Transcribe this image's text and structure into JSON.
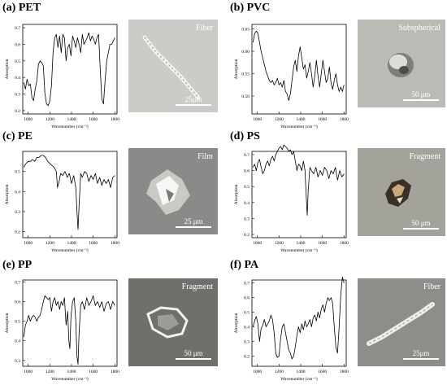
{
  "panels": [
    {
      "id": "a",
      "title": "(a) PET",
      "morphology": "Fiber",
      "scale": "25μm",
      "bg": "#c9ccc7"
    },
    {
      "id": "b",
      "title": "(b) PVC",
      "morphology": "Subspherical",
      "scale": "50 μm",
      "bg": "#b8bcb4"
    },
    {
      "id": "c",
      "title": "(c) PE",
      "morphology": "Film",
      "scale": "25 μm",
      "bg": "#8a8a88"
    },
    {
      "id": "d",
      "title": "(d) PS",
      "morphology": "Fragment",
      "scale": "50 μm",
      "bg": "#a3a39c"
    },
    {
      "id": "e",
      "title": "(e) PP",
      "morphology": "Fragment",
      "scale": "50 μm",
      "bg": "#6f706c"
    },
    {
      "id": "f",
      "title": "(f) PA",
      "morphology": "Fiber",
      "scale": "25μm",
      "bg": "#8c8e8a"
    }
  ],
  "chart_data": [
    {
      "type": "line",
      "panel": "a",
      "xlabel": "Wavenumber (cm⁻¹)",
      "ylabel": "Absorption",
      "xlim": [
        950,
        1820
      ],
      "ylim": [
        0.18,
        0.72
      ],
      "xticks": [
        "1000",
        "1200",
        "1400",
        "1600",
        "1800"
      ],
      "yticks": [
        "0.2",
        "0.3",
        "0.4",
        "0.5",
        "0.6",
        "0.7"
      ],
      "x": [
        960,
        975,
        990,
        1005,
        1020,
        1035,
        1050,
        1065,
        1080,
        1095,
        1110,
        1125,
        1140,
        1155,
        1170,
        1185,
        1200,
        1215,
        1230,
        1245,
        1260,
        1275,
        1290,
        1305,
        1320,
        1335,
        1350,
        1365,
        1380,
        1395,
        1410,
        1425,
        1440,
        1455,
        1470,
        1485,
        1500,
        1515,
        1530,
        1545,
        1560,
        1575,
        1590,
        1605,
        1620,
        1635,
        1650,
        1665,
        1680,
        1695,
        1710,
        1725,
        1740,
        1755,
        1770,
        1785,
        1800
      ],
      "y": [
        0.37,
        0.33,
        0.39,
        0.35,
        0.36,
        0.28,
        0.26,
        0.33,
        0.38,
        0.48,
        0.5,
        0.49,
        0.47,
        0.3,
        0.24,
        0.23,
        0.26,
        0.35,
        0.55,
        0.64,
        0.66,
        0.58,
        0.65,
        0.55,
        0.66,
        0.64,
        0.5,
        0.58,
        0.6,
        0.53,
        0.65,
        0.62,
        0.58,
        0.64,
        0.6,
        0.55,
        0.66,
        0.6,
        0.62,
        0.64,
        0.67,
        0.62,
        0.65,
        0.63,
        0.6,
        0.64,
        0.66,
        0.45,
        0.27,
        0.24,
        0.38,
        0.5,
        0.55,
        0.6,
        0.6,
        0.62,
        0.64
      ]
    },
    {
      "type": "line",
      "panel": "b",
      "xlabel": "Wavenumber (cm⁻¹)",
      "ylabel": "Absorption",
      "xlim": [
        950,
        1820
      ],
      "ylim": [
        0.46,
        0.66
      ],
      "xticks": [
        "1000",
        "1200",
        "1400",
        "1600",
        "1800"
      ],
      "yticks": [
        "0.50",
        "0.55",
        "0.60",
        "0.65"
      ],
      "x": [
        960,
        975,
        990,
        1005,
        1020,
        1035,
        1050,
        1065,
        1080,
        1095,
        1110,
        1125,
        1140,
        1155,
        1170,
        1185,
        1200,
        1215,
        1230,
        1245,
        1260,
        1275,
        1290,
        1305,
        1320,
        1335,
        1350,
        1365,
        1380,
        1395,
        1410,
        1425,
        1440,
        1455,
        1470,
        1485,
        1500,
        1515,
        1530,
        1545,
        1560,
        1575,
        1590,
        1605,
        1620,
        1635,
        1650,
        1665,
        1680,
        1695,
        1710,
        1725,
        1740,
        1755,
        1770,
        1785,
        1800
      ],
      "y": [
        0.62,
        0.64,
        0.645,
        0.64,
        0.62,
        0.6,
        0.585,
        0.57,
        0.555,
        0.545,
        0.535,
        0.53,
        0.535,
        0.525,
        0.53,
        0.54,
        0.525,
        0.53,
        0.52,
        0.535,
        0.51,
        0.505,
        0.49,
        0.505,
        0.535,
        0.565,
        0.58,
        0.555,
        0.59,
        0.61,
        0.585,
        0.56,
        0.57,
        0.54,
        0.555,
        0.575,
        0.55,
        0.52,
        0.545,
        0.58,
        0.545,
        0.52,
        0.55,
        0.58,
        0.555,
        0.53,
        0.54,
        0.565,
        0.53,
        0.515,
        0.535,
        0.55,
        0.525,
        0.51,
        0.52,
        0.51,
        0.525
      ]
    },
    {
      "type": "line",
      "panel": "c",
      "xlabel": "Wavenumber (cm⁻¹)",
      "ylabel": "Absorption",
      "xlim": [
        950,
        1820
      ],
      "ylim": [
        0.17,
        0.6
      ],
      "xticks": [
        "1000",
        "1200",
        "1400",
        "1600",
        "1800"
      ],
      "yticks": [
        "0.2",
        "0.3",
        "0.4",
        "0.5"
      ],
      "x": [
        960,
        980,
        1000,
        1020,
        1040,
        1060,
        1080,
        1100,
        1120,
        1140,
        1160,
        1180,
        1200,
        1220,
        1240,
        1260,
        1270,
        1285,
        1300,
        1320,
        1340,
        1360,
        1380,
        1400,
        1420,
        1440,
        1450,
        1460,
        1470,
        1485,
        1500,
        1520,
        1540,
        1560,
        1580,
        1600,
        1620,
        1640,
        1660,
        1680,
        1700,
        1720,
        1740,
        1760,
        1780,
        1800
      ],
      "y": [
        0.52,
        0.54,
        0.55,
        0.55,
        0.56,
        0.55,
        0.57,
        0.57,
        0.58,
        0.58,
        0.57,
        0.55,
        0.54,
        0.53,
        0.52,
        0.5,
        0.42,
        0.45,
        0.49,
        0.48,
        0.5,
        0.47,
        0.49,
        0.44,
        0.48,
        0.42,
        0.3,
        0.21,
        0.33,
        0.49,
        0.47,
        0.5,
        0.49,
        0.45,
        0.48,
        0.46,
        0.49,
        0.44,
        0.47,
        0.43,
        0.46,
        0.44,
        0.46,
        0.42,
        0.47,
        0.48
      ]
    },
    {
      "type": "line",
      "panel": "d",
      "xlabel": "Wavenumber (cm⁻¹)",
      "ylabel": "Absorption",
      "xlim": [
        950,
        1820
      ],
      "ylim": [
        0.18,
        0.72
      ],
      "xticks": [
        "1000",
        "1200",
        "1400",
        "1600",
        "1800"
      ],
      "yticks": [
        "0.2",
        "0.3",
        "0.4",
        "0.5",
        "0.6",
        "0.7"
      ],
      "x": [
        960,
        975,
        990,
        1005,
        1020,
        1035,
        1050,
        1065,
        1080,
        1095,
        1110,
        1125,
        1140,
        1155,
        1170,
        1185,
        1200,
        1215,
        1230,
        1245,
        1260,
        1275,
        1290,
        1305,
        1320,
        1335,
        1350,
        1365,
        1380,
        1395,
        1410,
        1425,
        1440,
        1450,
        1460,
        1470,
        1485,
        1500,
        1520,
        1540,
        1560,
        1580,
        1600,
        1620,
        1640,
        1660,
        1680,
        1700,
        1720,
        1740,
        1760,
        1780,
        1800
      ],
      "y": [
        0.62,
        0.64,
        0.6,
        0.65,
        0.67,
        0.62,
        0.58,
        0.6,
        0.64,
        0.66,
        0.63,
        0.67,
        0.69,
        0.66,
        0.7,
        0.72,
        0.74,
        0.75,
        0.73,
        0.76,
        0.75,
        0.74,
        0.72,
        0.73,
        0.7,
        0.72,
        0.66,
        0.6,
        0.64,
        0.63,
        0.6,
        0.66,
        0.6,
        0.45,
        0.32,
        0.48,
        0.62,
        0.6,
        0.58,
        0.62,
        0.56,
        0.6,
        0.57,
        0.62,
        0.6,
        0.55,
        0.6,
        0.58,
        0.62,
        0.54,
        0.6,
        0.56,
        0.58
      ]
    },
    {
      "type": "line",
      "panel": "e",
      "xlabel": "Wavenumber (cm⁻¹)",
      "ylabel": "Absorption",
      "xlim": [
        950,
        1820
      ],
      "ylim": [
        0.27,
        0.71
      ],
      "xticks": [
        "1000",
        "1200",
        "1400",
        "1600",
        "1800"
      ],
      "yticks": [
        "0.3",
        "0.4",
        "0.5",
        "0.6",
        "0.7"
      ],
      "x": [
        960,
        975,
        990,
        1005,
        1020,
        1035,
        1050,
        1065,
        1080,
        1095,
        1110,
        1125,
        1140,
        1155,
        1170,
        1185,
        1200,
        1215,
        1230,
        1245,
        1260,
        1275,
        1290,
        1305,
        1320,
        1335,
        1350,
        1365,
        1375,
        1385,
        1395,
        1410,
        1425,
        1440,
        1450,
        1460,
        1470,
        1485,
        1500,
        1520,
        1540,
        1560,
        1580,
        1600,
        1620,
        1640,
        1660,
        1680,
        1700,
        1720,
        1740,
        1760,
        1780,
        1800
      ],
      "y": [
        0.42,
        0.48,
        0.5,
        0.53,
        0.5,
        0.52,
        0.53,
        0.52,
        0.5,
        0.52,
        0.53,
        0.56,
        0.6,
        0.63,
        0.62,
        0.61,
        0.62,
        0.55,
        0.6,
        0.62,
        0.58,
        0.6,
        0.56,
        0.6,
        0.58,
        0.62,
        0.48,
        0.55,
        0.4,
        0.36,
        0.52,
        0.6,
        0.62,
        0.5,
        0.32,
        0.28,
        0.44,
        0.58,
        0.6,
        0.56,
        0.62,
        0.58,
        0.6,
        0.63,
        0.58,
        0.6,
        0.57,
        0.6,
        0.55,
        0.59,
        0.6,
        0.56,
        0.6,
        0.58
      ]
    },
    {
      "type": "line",
      "panel": "f",
      "xlabel": "Wavenumber (cm⁻¹)",
      "ylabel": "Absorption",
      "xlim": [
        950,
        1820
      ],
      "ylim": [
        0.13,
        0.72
      ],
      "xticks": [
        "1000",
        "1200",
        "1400",
        "1600",
        "1800"
      ],
      "yticks": [
        "0.2",
        "0.3",
        "0.4",
        "0.5",
        "0.6",
        "0.7"
      ],
      "x": [
        960,
        975,
        990,
        1005,
        1020,
        1035,
        1050,
        1065,
        1080,
        1095,
        1110,
        1125,
        1140,
        1155,
        1170,
        1185,
        1200,
        1215,
        1230,
        1245,
        1260,
        1275,
        1290,
        1305,
        1320,
        1335,
        1350,
        1365,
        1380,
        1395,
        1410,
        1425,
        1440,
        1455,
        1470,
        1485,
        1500,
        1515,
        1530,
        1545,
        1560,
        1575,
        1590,
        1605,
        1620,
        1635,
        1650,
        1665,
        1680,
        1695,
        1710,
        1725,
        1740,
        1755,
        1770,
        1785,
        1800
      ],
      "y": [
        0.4,
        0.44,
        0.47,
        0.42,
        0.3,
        0.39,
        0.41,
        0.45,
        0.4,
        0.42,
        0.44,
        0.48,
        0.45,
        0.36,
        0.22,
        0.19,
        0.2,
        0.32,
        0.4,
        0.42,
        0.36,
        0.3,
        0.24,
        0.22,
        0.18,
        0.2,
        0.26,
        0.34,
        0.4,
        0.36,
        0.42,
        0.38,
        0.44,
        0.4,
        0.42,
        0.45,
        0.4,
        0.46,
        0.48,
        0.44,
        0.5,
        0.46,
        0.52,
        0.55,
        0.5,
        0.56,
        0.6,
        0.58,
        0.6,
        0.56,
        0.4,
        0.26,
        0.22,
        0.4,
        0.62,
        0.74,
        0.7
      ]
    }
  ]
}
